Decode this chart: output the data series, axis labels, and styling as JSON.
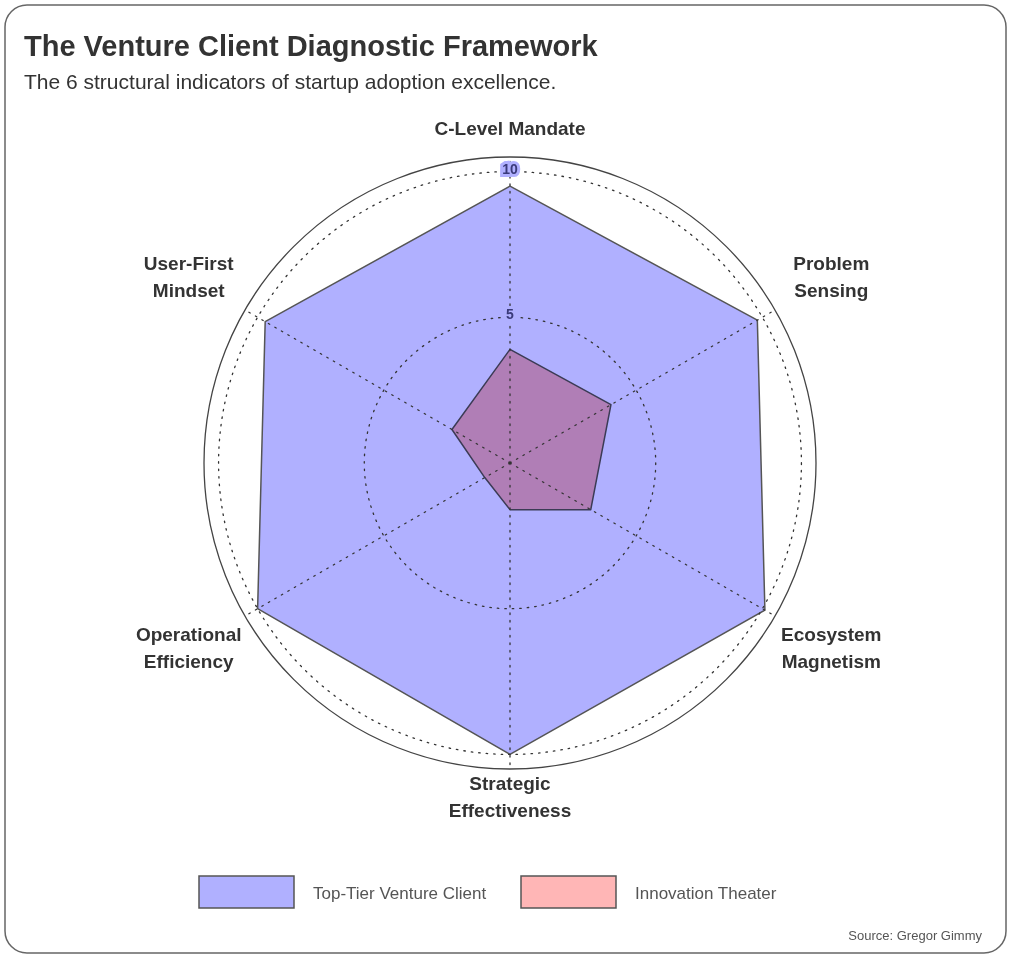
{
  "chart_data": {
    "type": "radar",
    "title": "The Venture Client Diagnostic Framework",
    "subtitle": "The 6 structural indicators of startup adoption excellence.",
    "categories": [
      "C-Level Mandate",
      "Problem Sensing",
      "Ecosystem Magnetism",
      "Strategic Effectiveness",
      "Operational Efficiency",
      "User-First Mindset"
    ],
    "series": [
      {
        "name": "Top-Tier Venture Client",
        "color": "#b0b0ff",
        "values": [
          9.5,
          9.8,
          10.1,
          10.0,
          10.0,
          9.7
        ]
      },
      {
        "name": "Innovation Theater",
        "color": "#ffb6b6",
        "values": [
          3.9,
          4.0,
          3.2,
          1.6,
          1.0,
          2.3
        ]
      }
    ],
    "ylim": [
      0,
      10.5
    ],
    "yticks": [
      5,
      10
    ],
    "legend": "bottom",
    "annotations": [
      "Source: Gregor Gimmy"
    ]
  }
}
